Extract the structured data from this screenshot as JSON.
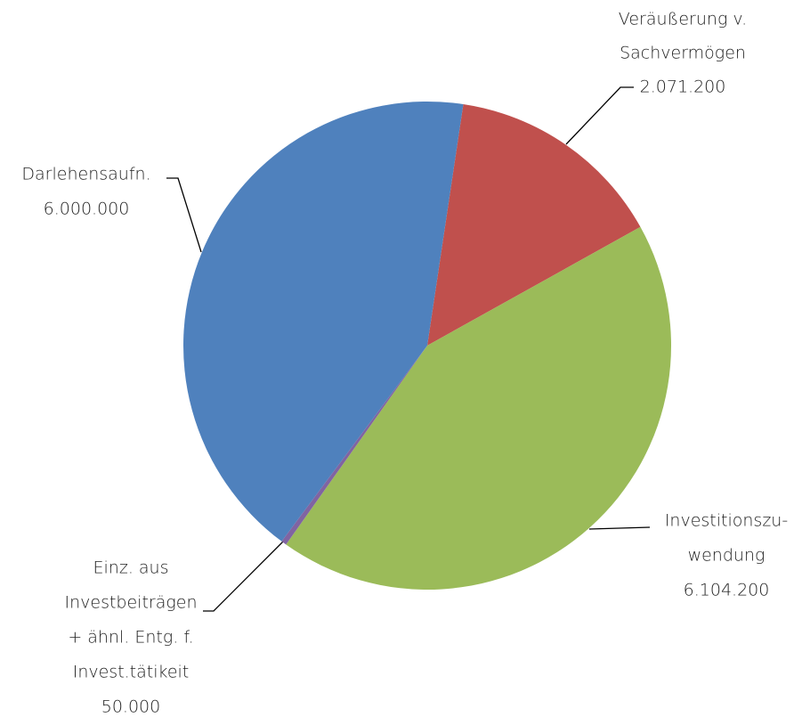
{
  "chart_data": {
    "type": "pie",
    "categories": [
      [
        "Veräußerung v.",
        "Sachvermögen"
      ],
      [
        "Investitionszu-",
        "wendung"
      ],
      [
        "Einz. aus",
        "Investbeiträgen",
        "+ ähnl. Entg. f.",
        "Invest.tätikeit"
      ],
      [
        "Darlehensaufn."
      ]
    ],
    "values": [
      2071200,
      6104200,
      50000,
      6000000
    ],
    "value_labels": [
      "2.071.200",
      "6.104.200",
      "50.000",
      "6.000.000"
    ],
    "colors": [
      "#c0504d",
      "#9bbb59",
      "#8064a2",
      "#4f81bd"
    ]
  }
}
